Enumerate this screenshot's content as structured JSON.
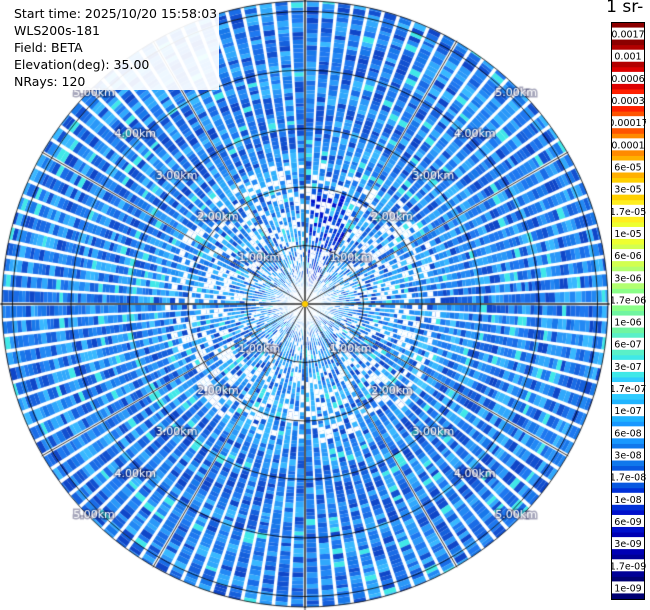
{
  "info": {
    "start_time": "Start time: 2025/10/20 15:58:03",
    "instrument": "WLS200s-181",
    "field": "Field: BETA",
    "elevation": "Elevation(deg): 35.00",
    "nrays": "NRays: 120"
  },
  "colorbar": {
    "unit_title": "-1 sr-",
    "labels": [
      "0.0017",
      "0.001",
      "0.0006",
      "0.0003",
      "0.00017",
      "0.0001",
      "6e-05",
      "3e-05",
      "1.7e-05",
      "1e-05",
      "6e-06",
      "3e-06",
      "1.7e-06",
      "1e-06",
      "6e-07",
      "3e-07",
      "1.7e-07",
      "1e-07",
      "6e-08",
      "3e-08",
      "1.7e-08",
      "1e-08",
      "6e-09",
      "3e-09",
      "1.7e-09",
      "1e-09"
    ],
    "colors": [
      "#8b0000",
      "#b20000",
      "#dd0000",
      "#ff2000",
      "#ff5400",
      "#ff8a00",
      "#ffb000",
      "#ffd000",
      "#ffee20",
      "#eeff30",
      "#d2ff50",
      "#b2ff70",
      "#8aff88",
      "#70f5a0",
      "#5af0c8",
      "#40e8e8",
      "#30ccff",
      "#20b4ff",
      "#1898ff",
      "#1078ec",
      "#0858e0",
      "#0030d8",
      "#0010cc",
      "#0000b4",
      "#000096",
      "#000072"
    ]
  },
  "ppi": {
    "range_ring_labels": [
      "1.00km",
      "2.00km",
      "3.00km",
      "4.00km",
      "5.00km"
    ]
  }
}
